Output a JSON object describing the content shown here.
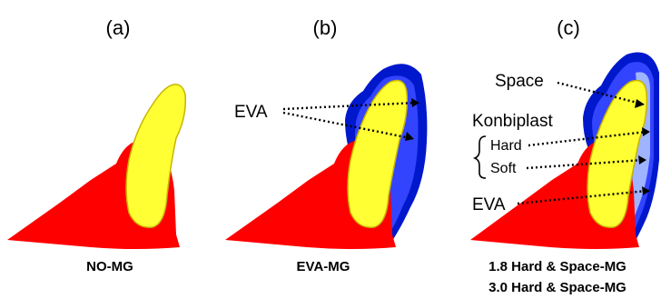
{
  "colors": {
    "gum": "#ff0000",
    "tooth": "#ffff33",
    "tooth_outline": "#c8b400",
    "guard_outer": "#0018cc",
    "guard_inner": "#3344ff",
    "space_layer": "#9fb4ff"
  },
  "panels": [
    {
      "label": "(a)",
      "caption": "NO-MG"
    },
    {
      "label": "(b)",
      "caption": "EVA-MG"
    },
    {
      "label": "(c)",
      "caption_lines": [
        "1.8 Hard & Space-MG",
        "3.0 Hard & Space-MG"
      ]
    }
  ],
  "callouts": {
    "panel_b": {
      "eva": "EVA"
    },
    "panel_c": {
      "space": "Space",
      "konbiplast": "Konbiplast",
      "hard": "Hard",
      "soft": "Soft",
      "eva": "EVA"
    }
  }
}
